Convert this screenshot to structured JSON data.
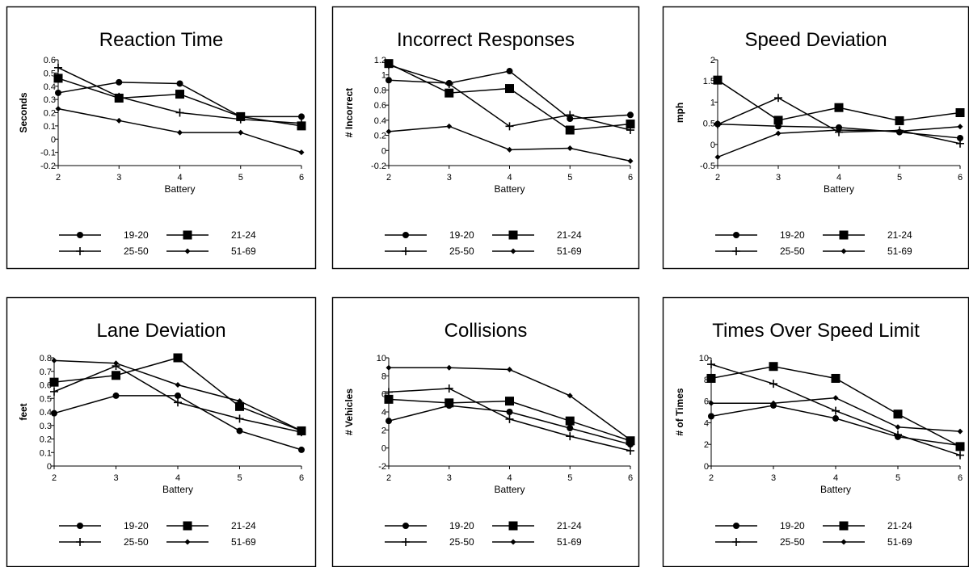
{
  "chart_data": [
    {
      "type": "line",
      "title": "Reaction Time",
      "xlabel": "Battery",
      "ylabel": "Seconds",
      "x": [
        2,
        3,
        4,
        5,
        6
      ],
      "xlim": [
        2,
        6
      ],
      "ylim": [
        -0.2,
        0.6
      ],
      "yticks": [
        "0.6",
        "0.5",
        "0.4",
        "0.3",
        "0.2",
        "0.1",
        "0",
        "-0.1",
        "-0.2"
      ],
      "xticks": [
        "2",
        "3",
        "4",
        "5",
        "6"
      ],
      "grid": false,
      "legend": "bottom",
      "series": [
        {
          "name": "19-20",
          "marker": "circle",
          "values": [
            0.35,
            0.43,
            0.42,
            0.17,
            0.17
          ]
        },
        {
          "name": "21-24",
          "marker": "square",
          "values": [
            0.46,
            0.31,
            0.34,
            0.17,
            0.1
          ]
        },
        {
          "name": "25-50",
          "marker": "plus",
          "values": [
            0.54,
            0.32,
            0.2,
            0.15,
            0.12
          ]
        },
        {
          "name": "51-69",
          "marker": "diamond",
          "values": [
            0.23,
            0.14,
            0.05,
            0.05,
            -0.1
          ]
        }
      ]
    },
    {
      "type": "line",
      "title": "Incorrect Responses",
      "xlabel": "Battery",
      "ylabel": "# Incorrect",
      "x": [
        2,
        3,
        4,
        5,
        6
      ],
      "xlim": [
        2,
        6
      ],
      "ylim": [
        -0.2,
        1.2
      ],
      "yticks": [
        "1.2",
        "1",
        "0.8",
        "0.6",
        "0.4",
        "0.2",
        "0",
        "-0.2"
      ],
      "xticks": [
        "2",
        "3",
        "4",
        "5",
        "6"
      ],
      "grid": false,
      "legend": "bottom",
      "series": [
        {
          "name": "19-20",
          "marker": "circle",
          "values": [
            0.93,
            0.89,
            1.05,
            0.42,
            0.47
          ]
        },
        {
          "name": "21-24",
          "marker": "square",
          "values": [
            1.15,
            0.76,
            0.82,
            0.27,
            0.35
          ]
        },
        {
          "name": "25-50",
          "marker": "plus",
          "values": [
            1.13,
            0.88,
            0.32,
            0.47,
            0.27
          ]
        },
        {
          "name": "51-69",
          "marker": "diamond",
          "values": [
            0.25,
            0.32,
            0.01,
            0.03,
            -0.14
          ]
        }
      ]
    },
    {
      "type": "line",
      "title": "Speed Deviation",
      "xlabel": "Battery",
      "ylabel": "mph",
      "x": [
        2,
        3,
        4,
        5,
        6
      ],
      "xlim": [
        2,
        6
      ],
      "ylim": [
        -0.5,
        2
      ],
      "yticks": [
        "2",
        "1.5",
        "1",
        "0.5",
        "0",
        "-0.5"
      ],
      "xticks": [
        "2",
        "3",
        "4",
        "5",
        "6"
      ],
      "grid": false,
      "legend": "bottom",
      "series": [
        {
          "name": "19-20",
          "marker": "circle",
          "values": [
            0.48,
            0.43,
            0.4,
            0.29,
            0.15
          ]
        },
        {
          "name": "21-24",
          "marker": "square",
          "values": [
            1.52,
            0.57,
            0.87,
            0.56,
            0.75
          ]
        },
        {
          "name": "25-50",
          "marker": "plus",
          "values": [
            0.47,
            1.1,
            0.29,
            0.33,
            0.02
          ]
        },
        {
          "name": "51-69",
          "marker": "diamond",
          "values": [
            -0.3,
            0.26,
            0.34,
            0.31,
            0.42
          ]
        }
      ]
    },
    {
      "type": "line",
      "title": "Lane Deviation",
      "xlabel": "Battery",
      "ylabel": "feet",
      "x": [
        2,
        3,
        4,
        5,
        6
      ],
      "xlim": [
        2,
        6
      ],
      "ylim": [
        0,
        0.8
      ],
      "yticks": [
        "0.8",
        "0.7",
        "0.6",
        "0.5",
        "0.4",
        "0.3",
        "0.2",
        "0.1",
        "0"
      ],
      "xticks": [
        "2",
        "3",
        "4",
        "5",
        "6"
      ],
      "grid": false,
      "legend": "bottom",
      "series": [
        {
          "name": "19-20",
          "marker": "circle",
          "values": [
            0.39,
            0.52,
            0.52,
            0.26,
            0.12
          ]
        },
        {
          "name": "21-24",
          "marker": "square",
          "values": [
            0.62,
            0.67,
            0.8,
            0.44,
            0.26
          ]
        },
        {
          "name": "25-50",
          "marker": "plus",
          "values": [
            0.55,
            0.74,
            0.47,
            0.35,
            0.25
          ]
        },
        {
          "name": "51-69",
          "marker": "diamond",
          "values": [
            0.78,
            0.76,
            0.6,
            0.48,
            0.26
          ]
        }
      ]
    },
    {
      "type": "line",
      "title": "Collisions",
      "xlabel": "Battery",
      "ylabel": "# Vehicles",
      "x": [
        2,
        3,
        4,
        5,
        6
      ],
      "xlim": [
        2,
        6
      ],
      "ylim": [
        -2,
        10
      ],
      "yticks": [
        "10",
        "8",
        "6",
        "4",
        "2",
        "0",
        "-2"
      ],
      "xticks": [
        "2",
        "3",
        "4",
        "5",
        "6"
      ],
      "grid": false,
      "legend": "bottom",
      "series": [
        {
          "name": "19-20",
          "marker": "circle",
          "values": [
            3.0,
            4.7,
            4.0,
            2.2,
            0.4
          ]
        },
        {
          "name": "21-24",
          "marker": "square",
          "values": [
            5.4,
            5.0,
            5.2,
            3.0,
            0.8
          ]
        },
        {
          "name": "25-50",
          "marker": "plus",
          "values": [
            6.2,
            6.6,
            3.2,
            1.3,
            -0.3
          ]
        },
        {
          "name": "51-69",
          "marker": "diamond",
          "values": [
            8.9,
            8.9,
            8.7,
            5.8,
            0.9
          ]
        }
      ]
    },
    {
      "type": "line",
      "title": "Times Over Speed Limit",
      "xlabel": "Battery",
      "ylabel": "# of Times",
      "x": [
        2,
        3,
        4,
        5,
        6
      ],
      "xlim": [
        2,
        6
      ],
      "ylim": [
        0,
        10
      ],
      "yticks": [
        "10",
        "8",
        "6",
        "4",
        "2",
        "0"
      ],
      "xticks": [
        "2",
        "3",
        "4",
        "5",
        "6"
      ],
      "grid": false,
      "legend": "bottom",
      "series": [
        {
          "name": "19-20",
          "marker": "circle",
          "values": [
            4.6,
            5.6,
            4.4,
            2.7,
            1.9
          ]
        },
        {
          "name": "21-24",
          "marker": "square",
          "values": [
            8.1,
            9.2,
            8.1,
            4.8,
            1.8
          ]
        },
        {
          "name": "25-50",
          "marker": "plus",
          "values": [
            9.4,
            7.6,
            5.1,
            2.9,
            1.0
          ]
        },
        {
          "name": "51-69",
          "marker": "diamond",
          "values": [
            5.8,
            5.8,
            6.3,
            3.6,
            3.2
          ]
        }
      ]
    }
  ]
}
